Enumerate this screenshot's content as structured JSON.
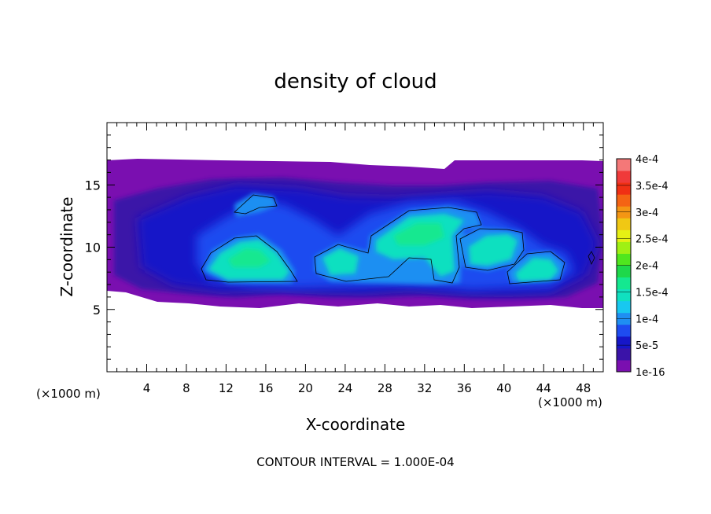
{
  "chart_data": {
    "type": "heatmap",
    "title": "density of cloud",
    "xlabel": "X-coordinate",
    "ylabel": "Z-coordinate",
    "x_unit_label_left": "(×1000 m)",
    "x_unit_label_right": "(×1000 m)",
    "footer": "CONTOUR INTERVAL = 1.000E-04",
    "xlim": [
      0,
      50
    ],
    "ylim": [
      0,
      20
    ],
    "x_ticks": [
      4,
      8,
      12,
      16,
      20,
      24,
      28,
      32,
      36,
      40,
      44,
      48
    ],
    "y_ticks": [
      5,
      10,
      15
    ],
    "contour_interval": 0.0001,
    "colorbar": {
      "labels": [
        "1e-16",
        "5e-5",
        "1e-4",
        "1.5e-4",
        "2e-4",
        "2.5e-4",
        "3e-4",
        "3.5e-4",
        "4e-4"
      ],
      "colors": [
        "#7a0fb0",
        "#3a13a8",
        "#1616c8",
        "#1e4cf0",
        "#1f8ff2",
        "#18c8f0",
        "#10e0c0",
        "#14e890",
        "#1ed84a",
        "#50e61e",
        "#a0f014",
        "#e6f014",
        "#f0c814",
        "#f49614",
        "#f46414",
        "#f03014",
        "#f03a3a",
        "#f47878"
      ]
    },
    "cloud_layer": {
      "z_bottom": 6.5,
      "z_top": 17,
      "x_range": [
        0,
        50
      ]
    },
    "cores": [
      {
        "x_range": [
          9.5,
          19
        ],
        "z_range": [
          7.2,
          10.8
        ],
        "peak": 0.00015
      },
      {
        "x_range": [
          21,
          34
        ],
        "z_range": [
          7.3,
          12.8
        ],
        "peak": 0.00015
      },
      {
        "x_range": [
          35,
          42
        ],
        "z_range": [
          7.8,
          11.3
        ],
        "peak": 0.00015
      },
      {
        "x_range": [
          40.5,
          46.5
        ],
        "z_range": [
          7.2,
          9.8
        ],
        "peak": 0.0001
      },
      {
        "x_range": [
          13,
          17.5
        ],
        "z_range": [
          12.5,
          14.8
        ],
        "peak": 0.0001
      }
    ]
  }
}
